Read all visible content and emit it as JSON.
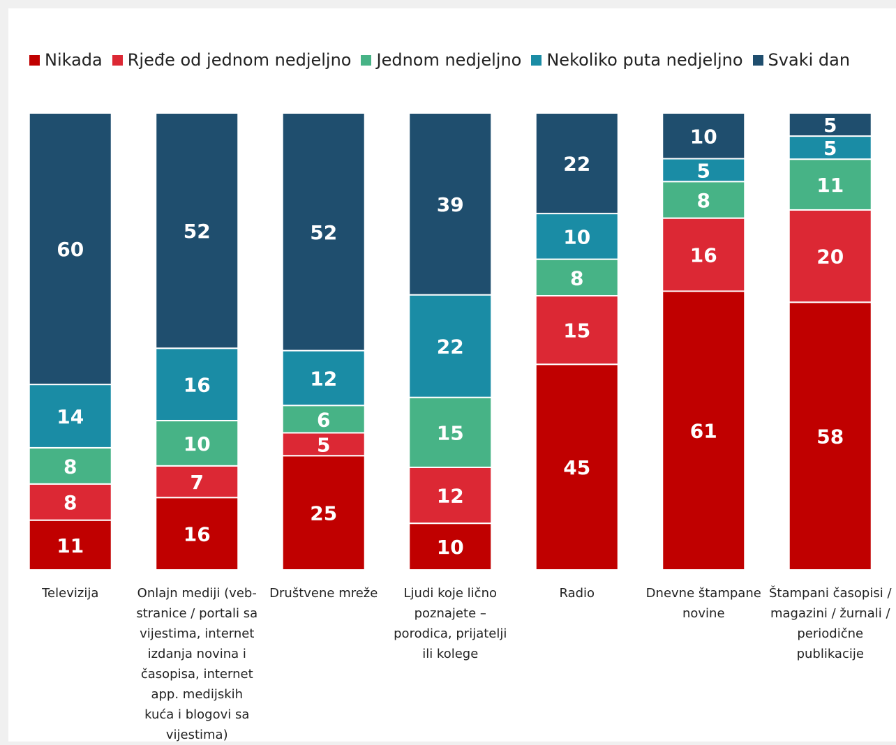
{
  "chart_data": {
    "type": "stacked_bar",
    "categories": [
      "Televizija",
      "Onlajn mediji (veb-stranice / portali sa vijestima, internet izdanja novina i časopisa, internet app. medijskih kuća i blogovi sa vijestima)",
      "Društvene mreže",
      "Ljudi koje lično poznajete – porodica, prijatelji ili kolege",
      "Radio",
      "Dnevne štampane novine",
      "Štampani časopisi / magazini / žurnali / periodične publikacije"
    ],
    "series": [
      {
        "name": "Nikada",
        "color": "#c00000",
        "values": [
          11,
          16,
          25,
          10,
          45,
          61,
          58
        ]
      },
      {
        "name": "Rjeđe od jednom nedjeljno",
        "color": "#dc2834",
        "values": [
          8,
          7,
          5,
          12,
          15,
          16,
          20
        ]
      },
      {
        "name": "Jednom nedjeljno",
        "color": "#47b386",
        "values": [
          8,
          10,
          6,
          15,
          8,
          8,
          11
        ]
      },
      {
        "name": "Nekoliko puta nedjeljno",
        "color": "#1a8ca5",
        "values": [
          14,
          16,
          12,
          22,
          10,
          5,
          5
        ]
      },
      {
        "name": "Svaki dan",
        "color": "#1f4e6e",
        "values": [
          60,
          52,
          52,
          39,
          22,
          10,
          5
        ]
      }
    ],
    "legend": "top"
  }
}
